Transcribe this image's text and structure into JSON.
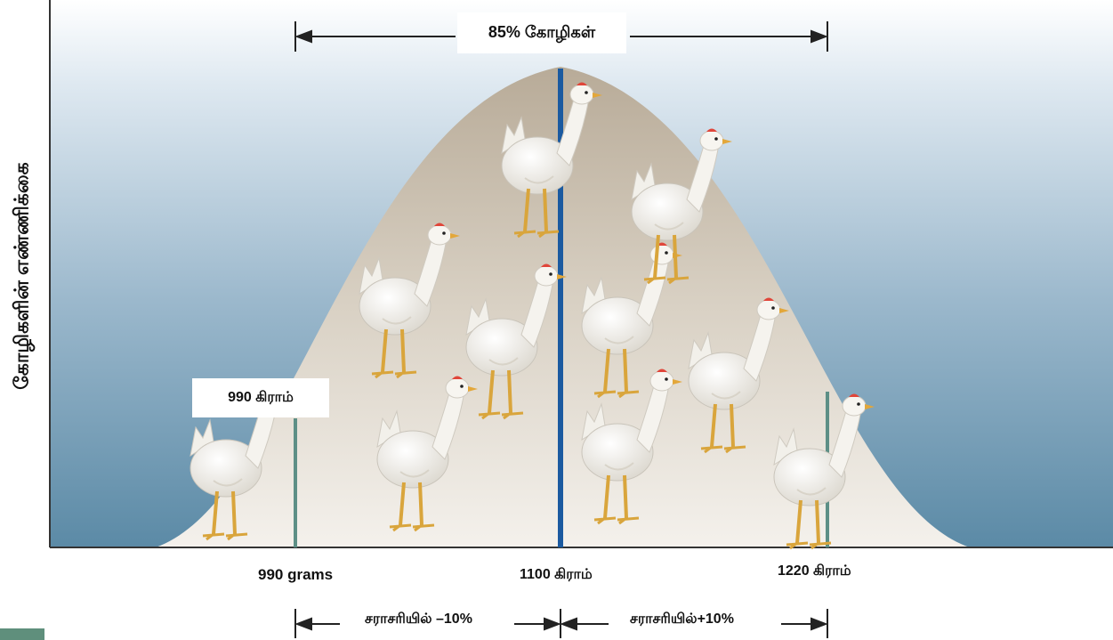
{
  "y_axis_label": "கோழிகளின் எண்ணிக்கை",
  "top_range_label": "85% கோழிகள்",
  "callout_label": "990 கிராம்",
  "x_ticks": {
    "left": "990 grams",
    "center": "1100 கிராம்",
    "right": "1220 கிராம்"
  },
  "bottom_ranges": {
    "minus": "சராசரியில் –10%",
    "plus": "சராசரியில்+10%"
  },
  "colors": {
    "background_top": "#ffffff",
    "background_bottom": "#5b8aa6",
    "curve_fill_top": "#b8ab98",
    "curve_fill_bottom": "#f4f1ec",
    "mean_line": "#1b5aa0",
    "bound_line": "#5d8f86"
  },
  "icons": [
    "chicken-icon"
  ]
}
